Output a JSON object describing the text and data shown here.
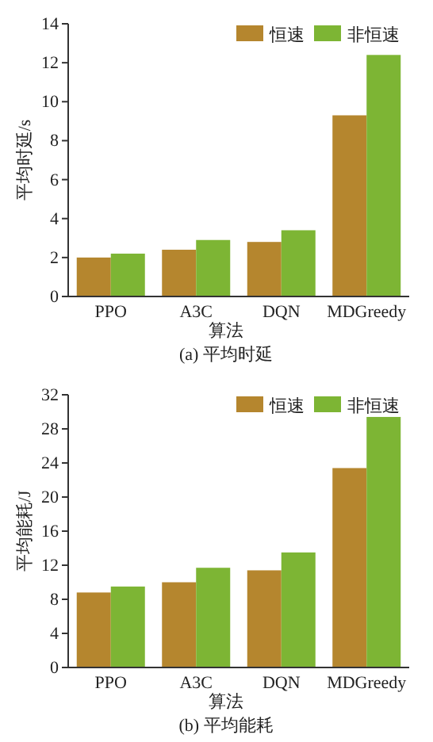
{
  "chart_data": [
    {
      "type": "bar",
      "xlabel": "算法",
      "ylabel": "平均时延/s",
      "annotations": [
        "(a) 平均时延"
      ],
      "categories": [
        "PPO",
        "A3C",
        "DQN",
        "MDGreedy"
      ],
      "series": [
        {
          "name": "恒速",
          "color": "#b5862e",
          "values": [
            2.0,
            2.4,
            2.8,
            9.3
          ]
        },
        {
          "name": "非恒速",
          "color": "#7db534",
          "values": [
            2.2,
            2.9,
            3.4,
            12.4
          ]
        }
      ],
      "ylim": [
        0,
        14
      ],
      "yticks": [
        0,
        2,
        4,
        6,
        8,
        10,
        12,
        14
      ],
      "legend": "top right",
      "grid": false
    },
    {
      "type": "bar",
      "xlabel": "算法",
      "ylabel": "平均能耗/J",
      "annotations": [
        "(b) 平均能耗"
      ],
      "categories": [
        "PPO",
        "A3C",
        "DQN",
        "MDGreedy"
      ],
      "series": [
        {
          "name": "恒速",
          "color": "#b5862e",
          "values": [
            8.8,
            10.0,
            11.4,
            23.4
          ]
        },
        {
          "name": "非恒速",
          "color": "#7db534",
          "values": [
            9.5,
            11.7,
            13.5,
            29.4
          ]
        }
      ],
      "ylim": [
        0,
        32
      ],
      "yticks": [
        0,
        4,
        8,
        12,
        16,
        20,
        24,
        28,
        32
      ],
      "legend": "top right",
      "grid": false
    }
  ]
}
